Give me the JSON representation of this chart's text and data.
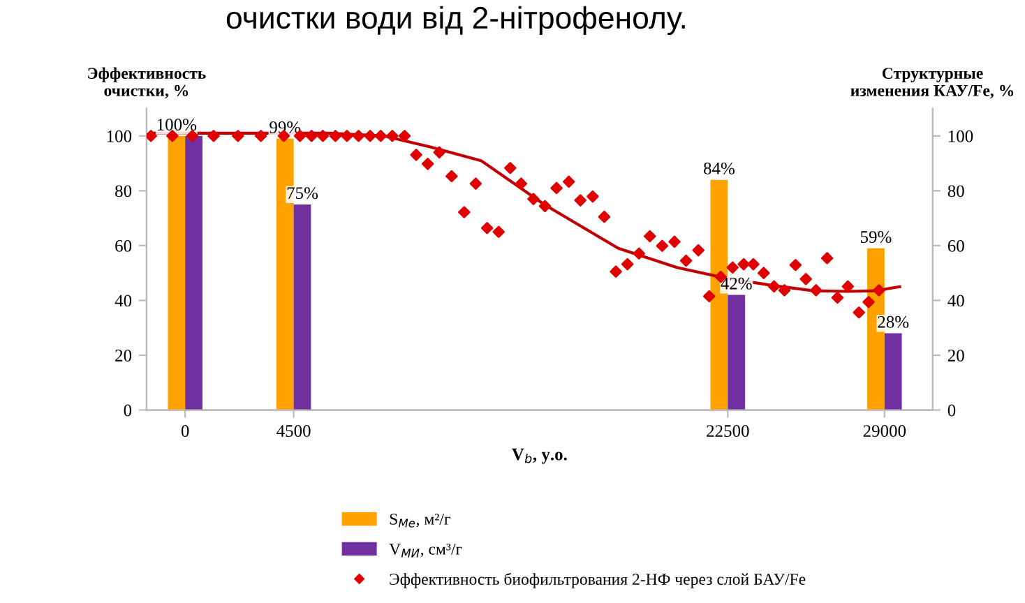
{
  "chart_data": {
    "type": "bar",
    "title": "очистки води від 2-нітрофенолу.",
    "ylabel": "Эффективность\nочистки, %",
    "y2label": "Структурные\nизменения КАУ/Fe, %",
    "xlabel": "V$_{b}$, у.о.",
    "x": [
      0,
      4500,
      22500,
      29000
    ],
    "xlim": [
      -1600,
      31000
    ],
    "xticks": [
      0,
      4500,
      22500,
      29000
    ],
    "ylim": [
      0,
      110
    ],
    "yticks": [
      0,
      20,
      40,
      60,
      80,
      100
    ],
    "y2lim": [
      0,
      110
    ],
    "y2ticks": [
      0,
      20,
      40,
      60,
      80,
      100
    ],
    "grid": false,
    "legend": "bottom",
    "series": [
      {
        "name": "S$_{Ме}$, м²/г",
        "color": "#ffa200",
        "values": [
          100,
          99,
          84,
          59
        ],
        "value_labels": [
          "100%",
          "99%",
          "84%",
          "59%"
        ]
      },
      {
        "name": "V$_{МИ}$, см³/г",
        "color": "#7030a0",
        "values": [
          100,
          75,
          42,
          28
        ],
        "value_labels": [
          null,
          "75%",
          "42%",
          "28%"
        ]
      },
      {
        "name": "Эффективность биофильтрования 2-НФ через слой БАУ/Fe",
        "type": "scatter",
        "marker": "diamond",
        "color": "#e00000",
        "x": [
          -1420,
          -530,
          300,
          1180,
          2190,
          3140,
          4090,
          4760,
          5240,
          5710,
          6230,
          6710,
          7190,
          7670,
          8110,
          8590,
          9100,
          9580,
          10060,
          10540,
          11050,
          11570,
          12050,
          12520,
          13000,
          13480,
          13930,
          14440,
          14920,
          15400,
          15910,
          16390,
          16900,
          17380,
          17860,
          18340,
          18820,
          19270,
          19780,
          20290,
          20770,
          21280,
          21730,
          22210,
          22700,
          23160,
          23560,
          23990,
          24420,
          24850,
          25310,
          25740,
          26160,
          26620,
          27050,
          27480,
          27940,
          28340,
          28770
        ],
        "values": [
          100,
          100,
          100,
          100,
          100,
          100,
          100,
          100,
          100,
          100,
          100,
          100,
          100,
          100,
          100,
          100,
          100,
          93.1,
          89.8,
          94.0,
          85.3,
          72.2,
          82.6,
          66.4,
          65.0,
          88.3,
          82.6,
          77.0,
          74.4,
          81.0,
          83.3,
          76.5,
          77.9,
          70.5,
          50.5,
          53.2,
          57.1,
          63.4,
          59.9,
          61.4,
          54.5,
          58.3,
          41.5,
          48.6,
          52.0,
          53.2,
          53.2,
          50.0,
          45.1,
          43.7,
          52.9,
          47.8,
          43.7,
          55.4,
          41.0,
          45.1,
          35.6,
          39.4,
          43.7
        ]
      },
      {
        "type": "line",
        "color": "#c00000",
        "line_style": "solid",
        "x": [
          -1420,
          6000,
          8240,
          10160,
          12270,
          14890,
          17960,
          20390,
          22500,
          24330,
          26050,
          27480,
          28630,
          29630
        ],
        "values": [
          101,
          101,
          100,
          96,
          91,
          75,
          59,
          52,
          48,
          45.5,
          43.5,
          43.3,
          43.5,
          45
        ]
      }
    ]
  }
}
